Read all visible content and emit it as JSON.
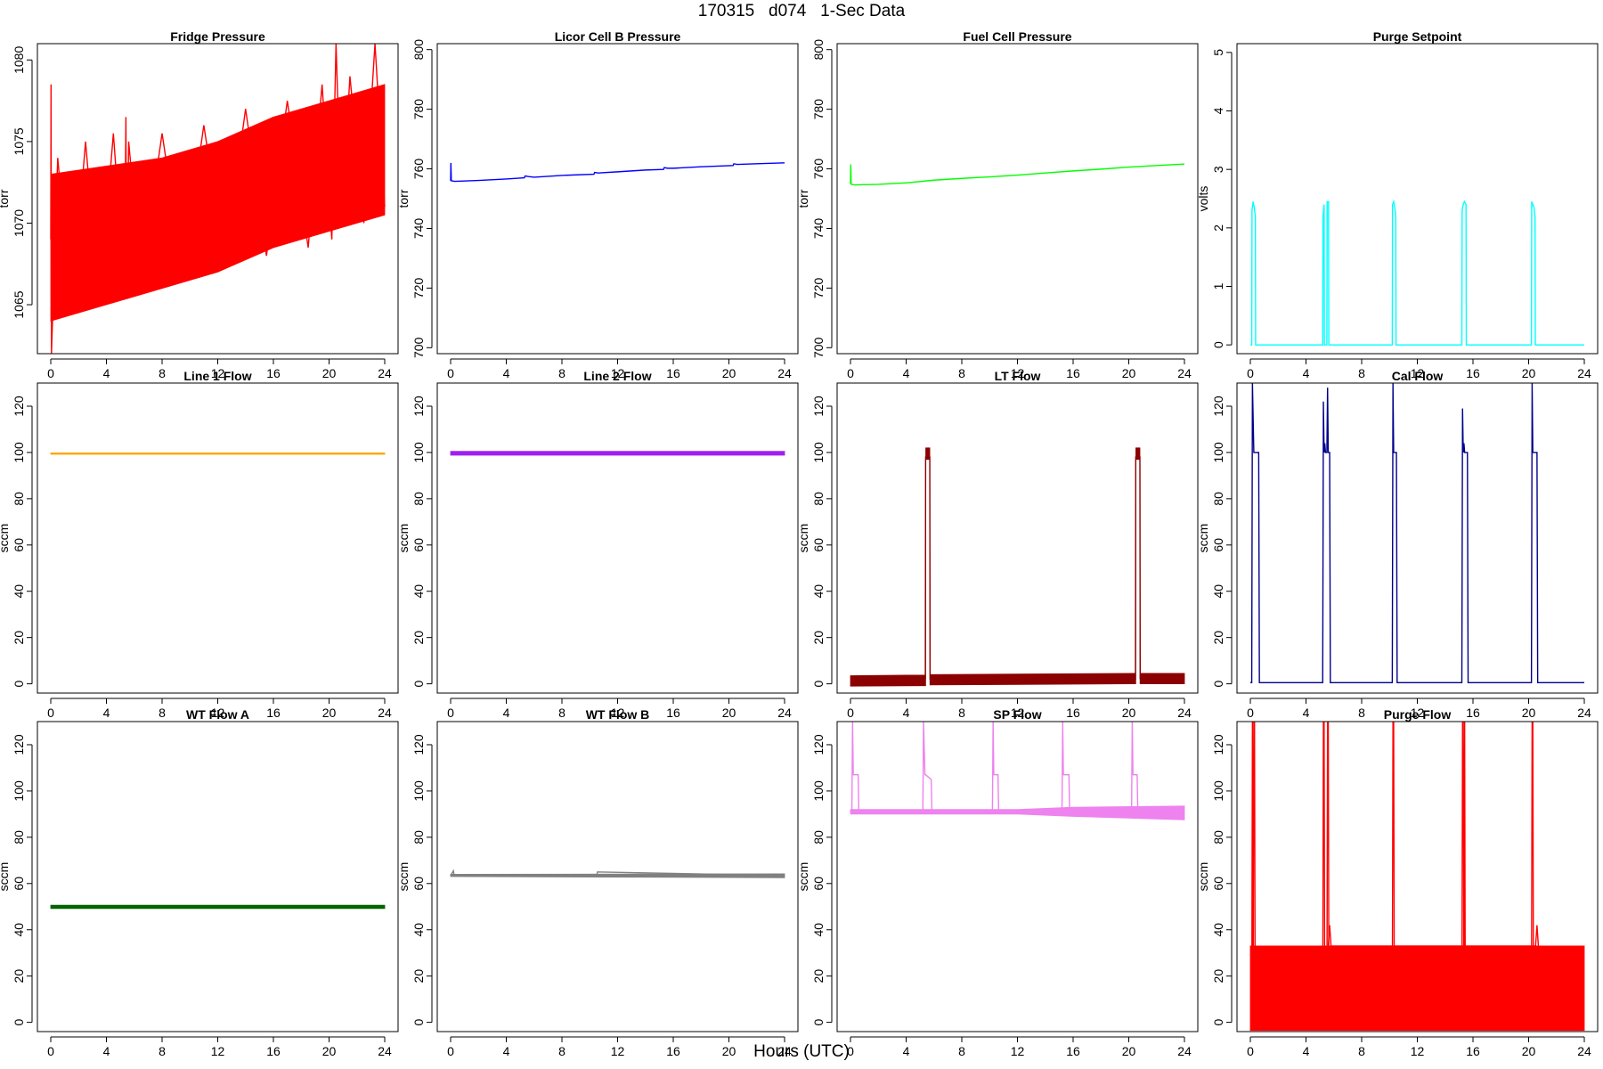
{
  "page": {
    "title": "170315   d074   1-Sec Data",
    "xlabel": "Hours (UTC)"
  },
  "chart_data": [
    {
      "type": "line",
      "title": "Fridge Pressure",
      "ylabel": "torr",
      "color": "#ff0000",
      "xlim": [
        0,
        24
      ],
      "ylim": [
        1062,
        1081
      ],
      "xticks": [
        0,
        4,
        8,
        12,
        16,
        20,
        24
      ],
      "yticks": [
        1065,
        1070,
        1075,
        1080
      ],
      "series": [
        {
          "style": "band",
          "x": [
            0,
            4,
            8,
            12,
            16,
            20,
            24
          ],
          "low": [
            1064,
            1065,
            1066,
            1067,
            1068.5,
            1069.5,
            1070.5
          ],
          "high": [
            1073,
            1073.5,
            1074,
            1075,
            1076.5,
            1077.5,
            1078.5
          ]
        },
        {
          "style": "line",
          "x": [
            0,
            0.02,
            0.05,
            0.5,
            1.5,
            2.5,
            3.5,
            4.5,
            5.3,
            5.4,
            5.45,
            5.6,
            6.5,
            8,
            9.5,
            11,
            12.5,
            14,
            15.5,
            17,
            18.5,
            19.5,
            20.2,
            20.5,
            20.9,
            21.5,
            22.5,
            23.3,
            24
          ],
          "y": [
            1069,
            1078.5,
            1062,
            1074,
            1064.5,
            1075,
            1065,
            1075.5,
            1066,
            1076.5,
            1066,
            1075,
            1066.5,
            1075.5,
            1067,
            1076,
            1067.5,
            1077,
            1068,
            1077.5,
            1068.5,
            1078.5,
            1069,
            1081,
            1070,
            1079,
            1070,
            1081,
            1071
          ]
        }
      ]
    },
    {
      "type": "line",
      "title": "Licor Cell B Pressure",
      "ylabel": "torr",
      "color": "#0000ff",
      "xlim": [
        0,
        24
      ],
      "ylim": [
        698,
        802
      ],
      "xticks": [
        0,
        4,
        8,
        12,
        16,
        20,
        24
      ],
      "yticks": [
        700,
        720,
        740,
        760,
        780,
        800
      ],
      "series": [
        {
          "style": "line",
          "x": [
            0,
            0.02,
            0.05,
            0.3,
            2,
            4,
            5.3,
            5.35,
            5.6,
            6,
            8,
            10.3,
            10.35,
            10.6,
            12,
            14,
            15.3,
            15.35,
            15.6,
            16,
            18,
            20.3,
            20.35,
            20.6,
            22,
            24
          ],
          "y": [
            756,
            762,
            756,
            755.8,
            756.1,
            756.6,
            757,
            757.6,
            757.4,
            757.2,
            757.8,
            758.2,
            758.8,
            758.6,
            759,
            759.6,
            759.8,
            760.4,
            760.2,
            760.2,
            760.7,
            761.1,
            761.7,
            761.5,
            761.7,
            762
          ]
        }
      ]
    },
    {
      "type": "line",
      "title": "Fuel Cell Pressure",
      "ylabel": "torr",
      "color": "#00ff00",
      "xlim": [
        0,
        24
      ],
      "ylim": [
        698,
        802
      ],
      "xticks": [
        0,
        4,
        8,
        12,
        16,
        20,
        24
      ],
      "yticks": [
        700,
        720,
        740,
        760,
        780,
        800
      ],
      "series": [
        {
          "style": "line",
          "x": [
            0,
            0.02,
            0.05,
            0.3,
            2,
            4,
            6,
            8,
            10,
            12,
            14,
            16,
            18,
            20,
            22,
            24
          ],
          "y": [
            755,
            761.5,
            754.8,
            754.6,
            754.8,
            755.3,
            756.2,
            756.8,
            757.3,
            757.9,
            758.6,
            759.3,
            759.9,
            760.6,
            761.1,
            761.6
          ]
        }
      ]
    },
    {
      "type": "line",
      "title": "Purge Setpoint",
      "ylabel": "volts",
      "color": "#00ffff",
      "xlim": [
        0,
        24
      ],
      "ylim": [
        -0.15,
        5.15
      ],
      "xticks": [
        0,
        4,
        8,
        12,
        16,
        20,
        24
      ],
      "yticks": [
        0,
        1,
        2,
        3,
        4,
        5
      ],
      "series": [
        {
          "style": "line",
          "x": [
            0,
            0.1,
            0.12,
            0.2,
            0.28,
            0.36,
            0.38,
            5.2,
            5.22,
            5.3,
            5.32,
            5.5,
            5.52,
            5.62,
            5.64,
            5.72,
            5.74,
            10.2,
            10.22,
            10.3,
            10.38,
            10.45,
            10.47,
            15.2,
            15.22,
            15.3,
            15.38,
            15.5,
            15.52,
            20.2,
            20.22,
            20.3,
            20.38,
            20.46,
            20.48,
            24
          ],
          "y": [
            0,
            0,
            2.3,
            2.45,
            2.35,
            2.2,
            0,
            0,
            2.2,
            2.4,
            0,
            0,
            2.45,
            2.45,
            0,
            0,
            0,
            0,
            2.4,
            2.45,
            2.35,
            2.2,
            0,
            0,
            2.3,
            2.4,
            2.45,
            2.4,
            0,
            0,
            2.45,
            2.4,
            2.35,
            2.2,
            0,
            0
          ]
        }
      ]
    },
    {
      "type": "line",
      "title": "Line 1 Flow",
      "ylabel": "sccm",
      "color": "#ffa500",
      "xlim": [
        0,
        24
      ],
      "ylim": [
        -4,
        130
      ],
      "xticks": [
        0,
        4,
        8,
        12,
        16,
        20,
        24
      ],
      "yticks": [
        0,
        20,
        40,
        60,
        80,
        100,
        120
      ],
      "series": [
        {
          "style": "band",
          "x": [
            0,
            24
          ],
          "low": [
            99.2,
            99.2
          ],
          "high": [
            99.8,
            99.8
          ]
        }
      ]
    },
    {
      "type": "line",
      "title": "Line 2 Flow",
      "ylabel": "sccm",
      "color": "#a020f0",
      "xlim": [
        0,
        24
      ],
      "ylim": [
        -4,
        130
      ],
      "xticks": [
        0,
        4,
        8,
        12,
        16,
        20,
        24
      ],
      "yticks": [
        0,
        20,
        40,
        60,
        80,
        100,
        120
      ],
      "series": [
        {
          "style": "band",
          "x": [
            0,
            24
          ],
          "low": [
            98.8,
            98.8
          ],
          "high": [
            100.5,
            100.5
          ]
        }
      ]
    },
    {
      "type": "line",
      "title": "LT Flow",
      "ylabel": "sccm",
      "color": "#8b0000",
      "xlim": [
        0,
        24
      ],
      "ylim": [
        -4,
        130
      ],
      "xticks": [
        0,
        4,
        8,
        12,
        16,
        20,
        24
      ],
      "yticks": [
        0,
        20,
        40,
        60,
        80,
        100,
        120
      ],
      "series": [
        {
          "style": "band",
          "x": [
            0,
            5.4,
            5.41,
            5.7,
            5.71,
            20.5,
            20.51,
            20.8,
            20.81,
            24
          ],
          "low": [
            -1,
            -0.8,
            97,
            97,
            -0.5,
            0,
            97,
            97,
            0,
            0
          ],
          "high": [
            3.5,
            3.8,
            102,
            102,
            4,
            4.5,
            102,
            102,
            4.5,
            4.5
          ]
        },
        {
          "style": "line",
          "x": [
            5.38,
            5.4,
            5.7,
            5.72,
            20.48,
            20.5,
            20.8,
            20.82
          ],
          "y": [
            2,
            98,
            98,
            2,
            2,
            98,
            98,
            2
          ]
        }
      ]
    },
    {
      "type": "line",
      "title": "Cal Flow",
      "ylabel": "sccm",
      "color": "#00008b",
      "xlim": [
        0,
        24
      ],
      "ylim": [
        -4,
        130
      ],
      "xticks": [
        0,
        4,
        8,
        12,
        16,
        20,
        24
      ],
      "yticks": [
        0,
        20,
        40,
        60,
        80,
        100,
        120
      ],
      "series": [
        {
          "style": "line",
          "x": [
            0,
            0.1,
            0.15,
            0.25,
            0.3,
            0.6,
            0.65,
            5.2,
            5.25,
            5.3,
            5.35,
            5.4,
            5.5,
            5.55,
            5.6,
            5.7,
            5.75,
            10.2,
            10.25,
            10.3,
            10.35,
            10.5,
            10.55,
            15.2,
            15.25,
            15.3,
            15.35,
            15.4,
            15.6,
            15.65,
            20.2,
            20.25,
            20.3,
            20.35,
            20.6,
            20.65,
            24
          ],
          "y": [
            0.5,
            0.5,
            130,
            100,
            100,
            100,
            0.5,
            0.5,
            122,
            100,
            104,
            100,
            100,
            128,
            100,
            100,
            0.5,
            0.5,
            130,
            100,
            100,
            100,
            0.5,
            0.5,
            119,
            100,
            104,
            100,
            100,
            0.5,
            0.5,
            130,
            100,
            100,
            100,
            0.5,
            0.5
          ]
        }
      ]
    },
    {
      "type": "line",
      "title": "WT Flow A",
      "ylabel": "sccm",
      "color": "#006400",
      "xlim": [
        0,
        24
      ],
      "ylim": [
        -4,
        130
      ],
      "xticks": [
        0,
        4,
        8,
        12,
        16,
        20,
        24
      ],
      "yticks": [
        0,
        20,
        40,
        60,
        80,
        100,
        120
      ],
      "series": [
        {
          "style": "band",
          "x": [
            0,
            24
          ],
          "low": [
            49.2,
            49.2
          ],
          "high": [
            50.6,
            50.6
          ]
        }
      ]
    },
    {
      "type": "line",
      "title": "WT Flow B",
      "ylabel": "sccm",
      "color": "#808080",
      "xlim": [
        0,
        24
      ],
      "ylim": [
        -4,
        130
      ],
      "xticks": [
        0,
        4,
        8,
        12,
        16,
        20,
        24
      ],
      "yticks": [
        0,
        20,
        40,
        60,
        80,
        100,
        120
      ],
      "series": [
        {
          "style": "band",
          "x": [
            0,
            24
          ],
          "low": [
            63,
            62.5
          ],
          "high": [
            64,
            64.2
          ]
        },
        {
          "style": "line",
          "x": [
            0,
            0.2,
            0.25,
            10.5,
            10.55,
            24
          ],
          "y": [
            63.5,
            65.5,
            63.5,
            63.6,
            65,
            63.4
          ]
        }
      ]
    },
    {
      "type": "line",
      "title": "SP Flow",
      "ylabel": "sccm",
      "color": "#ee82ee",
      "xlim": [
        0,
        24
      ],
      "ylim": [
        -4,
        130
      ],
      "xticks": [
        0,
        4,
        8,
        12,
        16,
        20,
        24
      ],
      "yticks": [
        0,
        20,
        40,
        60,
        80,
        100,
        120
      ],
      "series": [
        {
          "style": "line",
          "x": [
            0,
            0.1,
            0.15,
            0.2,
            0.25,
            0.55,
            0.6,
            5.2,
            5.25,
            5.35,
            5.4,
            5.8,
            5.85,
            10.2,
            10.25,
            10.3,
            10.35,
            10.6,
            10.65,
            15.2,
            15.25,
            15.3,
            15.35,
            15.7,
            15.75,
            20.2,
            20.25,
            20.3,
            20.35,
            20.6,
            20.65,
            24
          ],
          "y": [
            91,
            91,
            130,
            107,
            107,
            107,
            91,
            91,
            130,
            107,
            107,
            105,
            91,
            91,
            130,
            107,
            107,
            107,
            91,
            91,
            130,
            107,
            107,
            107,
            91,
            91,
            130,
            107,
            107,
            107,
            91,
            91
          ]
        },
        {
          "style": "band",
          "x": [
            0,
            12,
            16,
            24
          ],
          "low": [
            90,
            90,
            89,
            87.5
          ],
          "high": [
            92,
            92,
            93,
            93.5
          ]
        }
      ]
    },
    {
      "type": "line",
      "title": "Purge Flow",
      "ylabel": "sccm",
      "color": "#ff0000",
      "xlim": [
        0,
        24
      ],
      "ylim": [
        -4,
        130
      ],
      "xticks": [
        0,
        4,
        8,
        12,
        16,
        20,
        24
      ],
      "yticks": [
        0,
        20,
        40,
        60,
        80,
        100,
        120
      ],
      "series": [
        {
          "style": "band",
          "x": [
            0,
            24
          ],
          "low": [
            -3.5,
            -3.5
          ],
          "high": [
            33,
            33
          ]
        },
        {
          "style": "line",
          "x": [
            0.1,
            0.15,
            0.2,
            0.25,
            0.3,
            0.35,
            5.2,
            5.25,
            5.3,
            5.35,
            5.5,
            5.55,
            5.6,
            5.65,
            10.2,
            10.25,
            10.3,
            10.35,
            15.2,
            15.25,
            15.3,
            15.35,
            15.4,
            15.45,
            20.2,
            20.25,
            20.3,
            20.35
          ],
          "y": [
            0,
            130,
            0,
            130,
            130,
            0,
            0,
            130,
            130,
            0,
            0,
            130,
            130,
            0,
            0,
            130,
            130,
            0,
            0,
            130,
            130,
            0,
            130,
            0,
            0,
            130,
            130,
            0
          ]
        },
        {
          "style": "line",
          "x": [
            5.6,
            5.7,
            5.8,
            20.5,
            20.6,
            20.7
          ],
          "y": [
            33,
            42,
            33,
            33,
            42,
            33
          ]
        }
      ]
    }
  ]
}
